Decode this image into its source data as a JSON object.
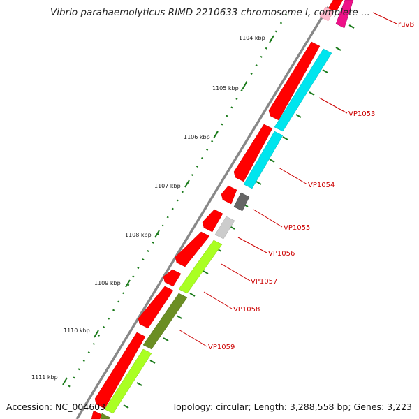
{
  "title": "Vibrio parahaemolyticus RIMD 2210633 chromosome I, complete ...",
  "footer": {
    "accession": "Accession: NC_004603",
    "summary": "Topology: circular; Length: 3,288,558 bp; Genes: 3,223"
  },
  "ticks": [
    "1104 kbp",
    "1105 kbp",
    "1106 kbp",
    "1107 kbp",
    "1108 kbp",
    "1109 kbp",
    "1110 kbp",
    "1111 kbp"
  ],
  "genes": [
    "ruvB",
    "VP1053",
    "VP1054",
    "VP1055",
    "VP1056",
    "VP1057",
    "VP1058",
    "VP1059"
  ],
  "colors": {
    "forward_strand": "#ff0000",
    "cyan_feature": "#00e5ee",
    "lime_feature": "#aaff22",
    "olive_feature": "#6b8e23",
    "gray_dark": "#666666",
    "gray_light": "#cccccc",
    "magenta_feature": "#ee1188",
    "pink_feature": "#ffbbcc",
    "backbone": "#888888",
    "tick_color": "#1a7a1a",
    "label_color": "#cc0000"
  }
}
